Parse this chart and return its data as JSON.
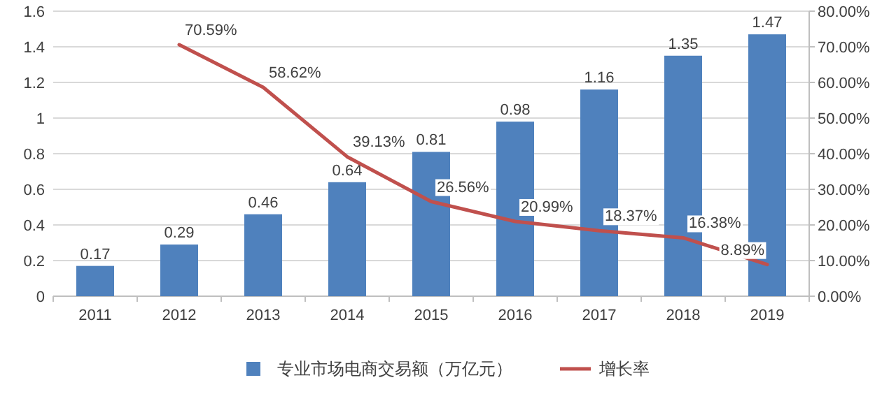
{
  "chart_data": {
    "type": "bar",
    "categories": [
      "2011",
      "2012",
      "2013",
      "2014",
      "2015",
      "2016",
      "2017",
      "2018",
      "2019"
    ],
    "series": [
      {
        "name": "专业市场电商交易额（万亿元）",
        "color": "#4f81bd",
        "values": [
          0.17,
          0.29,
          0.46,
          0.64,
          0.81,
          0.98,
          1.16,
          1.35,
          1.47
        ],
        "value_labels": [
          "0.17",
          "0.29",
          "0.46",
          "0.64",
          "0.81",
          "0.98",
          "1.16",
          "1.35",
          "1.47"
        ]
      },
      {
        "name": "增长率",
        "type": "line",
        "axis": "y2",
        "color": "#c0504d",
        "values": [
          null,
          70.59,
          58.62,
          39.13,
          26.56,
          20.99,
          18.37,
          16.38,
          8.89
        ],
        "value_labels": [
          null,
          "70.59%",
          "58.62%",
          "39.13%",
          "26.56%",
          "20.99%",
          "18.37%",
          "16.38%",
          "8.89%"
        ]
      }
    ],
    "ylim": [
      0,
      1.6
    ],
    "yticks": [
      0,
      0.2,
      0.4,
      0.6,
      0.8,
      1,
      1.2,
      1.4,
      1.6
    ],
    "y2lim": [
      0,
      80
    ],
    "y2ticks": [
      {
        "value": 0,
        "label": "0.00%"
      },
      {
        "value": 10,
        "label": "10.00%"
      },
      {
        "value": 20,
        "label": "20.00%"
      },
      {
        "value": 30,
        "label": "30.00%"
      },
      {
        "value": 40,
        "label": "40.00%"
      },
      {
        "value": 50,
        "label": "50.00%"
      },
      {
        "value": 60,
        "label": "60.00%"
      },
      {
        "value": 70,
        "label": "70.00%"
      },
      {
        "value": 80,
        "label": "80.00%"
      }
    ],
    "grid": "y",
    "legend": "bottom"
  }
}
